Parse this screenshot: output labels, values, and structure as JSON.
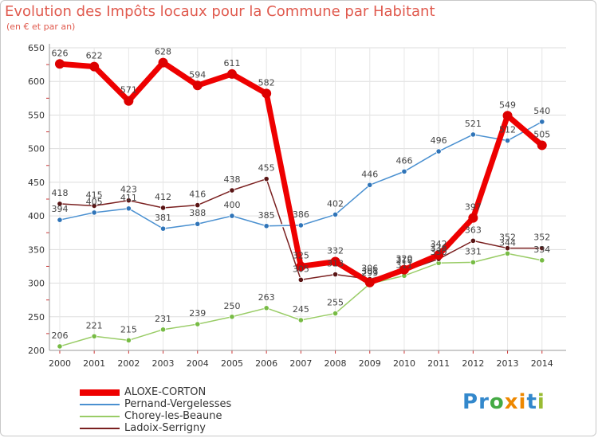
{
  "chart_data": {
    "type": "line",
    "title": "Evolution des Impôts locaux pour la Commune par Habitant",
    "subtitle": "(en € et par an)",
    "x": [
      "2000",
      "2001",
      "2002",
      "2003",
      "2004",
      "2005",
      "2006",
      "2007",
      "2008",
      "2009",
      "2010",
      "2011",
      "2012",
      "2013",
      "2014"
    ],
    "ylim": [
      200,
      650
    ],
    "yticks": [
      200,
      250,
      300,
      350,
      400,
      450,
      500,
      550,
      600,
      650
    ],
    "series": [
      {
        "name": "ALOXE-CORTON",
        "color": "#ee0000",
        "values": [
          626,
          622,
          571,
          628,
          594,
          611,
          582,
          325,
          332,
          301,
          320,
          342,
          397,
          549,
          505
        ]
      },
      {
        "name": "Pernand-Vergelesses",
        "color": "#4a90d0",
        "values": [
          394,
          405,
          411,
          381,
          388,
          400,
          385,
          386,
          402,
          446,
          466,
          496,
          521,
          512,
          540
        ]
      },
      {
        "name": "Chorey-les-Beaune",
        "color": "#99cc66",
        "values": [
          206,
          221,
          215,
          231,
          239,
          250,
          263,
          245,
          255,
          299,
          311,
          330,
          331,
          344,
          334
        ]
      },
      {
        "name": "Ladoix-Serrigny",
        "color": "#7a2020",
        "values": [
          418,
          415,
          423,
          412,
          416,
          438,
          455,
          305,
          313,
          306,
          318,
          336,
          363,
          352,
          352
        ]
      }
    ]
  },
  "logo": {
    "letters": [
      "P",
      "r",
      "o",
      "x",
      "i",
      "t",
      "i"
    ],
    "colors": [
      "#3388cc",
      "#3388cc",
      "#44aa44",
      "#ee8800",
      "#ee8800",
      "#3388cc",
      "#99bb33"
    ]
  }
}
